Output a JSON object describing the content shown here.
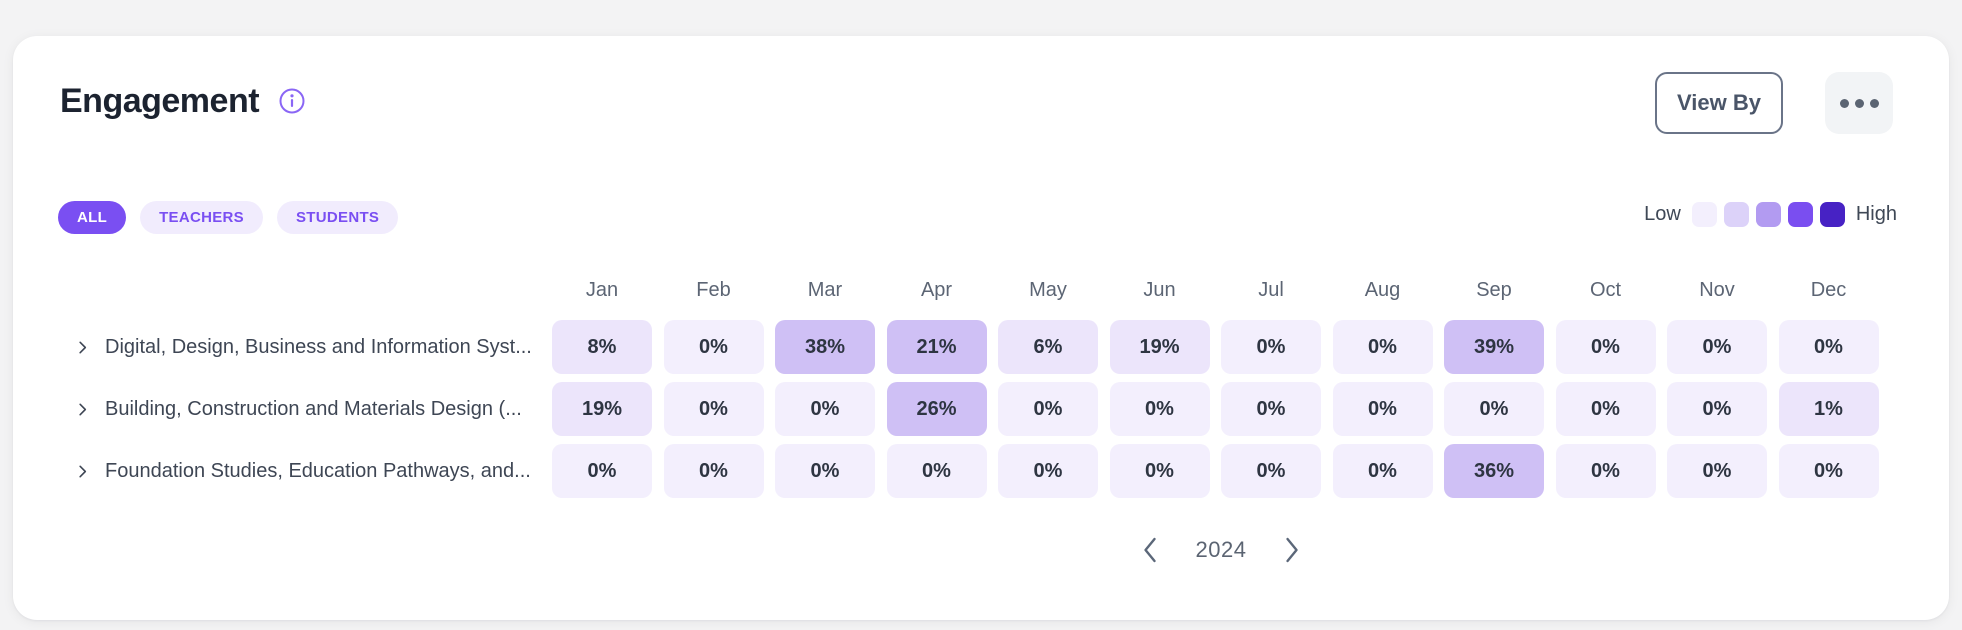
{
  "card": {
    "title": "Engagement"
  },
  "actions": {
    "view_by_label": "View By"
  },
  "filters": {
    "items": [
      "ALL",
      "TEACHERS",
      "STUDENTS"
    ],
    "active": "ALL"
  },
  "legend": {
    "low_label": "Low",
    "high_label": "High",
    "swatches": [
      "#f3effd",
      "#dcd2f9",
      "#b29bf1",
      "#7a4ef0",
      "#4722c4"
    ]
  },
  "pager": {
    "year": "2024"
  },
  "colors": {
    "accent": "#7a4ff2",
    "cell_text": "#2e3542"
  },
  "chart_data": {
    "type": "heatmap",
    "title": "Engagement",
    "unit": "%",
    "columns": [
      "Jan",
      "Feb",
      "Mar",
      "Apr",
      "May",
      "Jun",
      "Jul",
      "Aug",
      "Sep",
      "Oct",
      "Nov",
      "Dec"
    ],
    "rows": [
      {
        "label": "Digital, Design, Business and Information Syst...",
        "values": [
          8,
          0,
          38,
          21,
          6,
          19,
          0,
          0,
          39,
          0,
          0,
          0
        ]
      },
      {
        "label": "Building, Construction and Materials Design (...",
        "values": [
          19,
          0,
          0,
          26,
          0,
          0,
          0,
          0,
          0,
          0,
          0,
          1
        ]
      },
      {
        "label": "Foundation Studies, Education Pathways, and...",
        "values": [
          0,
          0,
          0,
          0,
          0,
          0,
          0,
          0,
          36,
          0,
          0,
          0
        ]
      }
    ],
    "value_range": [
      0,
      100
    ],
    "legend_position": "top-right",
    "color_scale": [
      {
        "max": 0,
        "color": "#f3effd"
      },
      {
        "max": 20,
        "color": "#ece5fb"
      },
      {
        "max": 40,
        "color": "#cfc0f5"
      },
      {
        "max": 60,
        "color": "#b29bf1"
      },
      {
        "max": 80,
        "color": "#7a4ef0"
      },
      {
        "max": 100,
        "color": "#4722c4"
      }
    ]
  }
}
